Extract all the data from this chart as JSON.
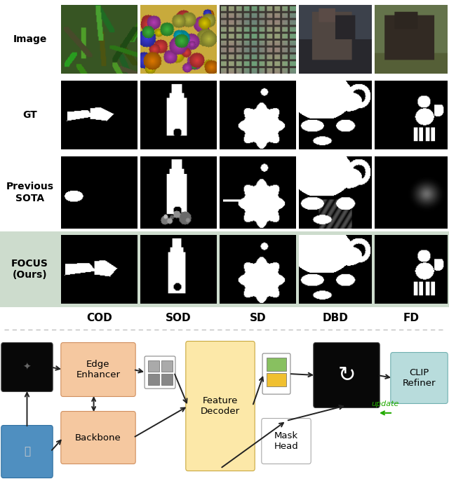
{
  "row_labels": [
    "Image",
    "GT",
    "Previous\nSOTA",
    "FOCUS\n(Ours)"
  ],
  "col_labels": [
    "COD",
    "SOD",
    "SD",
    "DBD",
    "FD"
  ],
  "focus_row_bg": "#cddccd",
  "white": "#ffffff",
  "dotted_line_color": "#bbbbbb",
  "label_fontsize": 10,
  "col_label_fontsize": 11,
  "diagram_fontsize": 9.5,
  "diagram": {
    "edge_enhancer_color": "#f5c8a0",
    "backbone_color": "#f5c8a0",
    "feature_decoder_color": "#fce8a8",
    "clip_refiner_color": "#b8dcdc",
    "blue_box_color": "#4f8fc0",
    "black_box_color": "#080808",
    "arrow_color": "#222222",
    "update_arrow_color": "#22aa00",
    "grid_gray_color": "#999999",
    "green_color": "#88c060",
    "yellow_color": "#f0c030"
  }
}
